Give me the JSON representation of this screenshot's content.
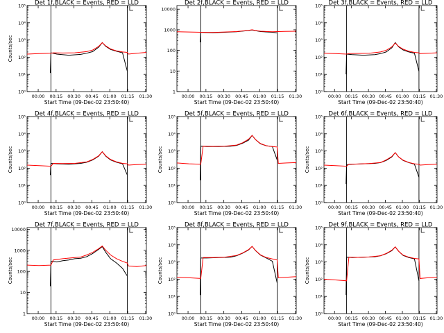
{
  "chart_data": [
    {
      "type": "line",
      "title": "Det 1f,BLACK = Events, RED = LLD",
      "ylabel": "Counts/sec",
      "xlabel": "Start Time (09-Dec-02 23:50:40)",
      "xticks": [
        "00:00",
        "00:15",
        "00:30",
        "00:45",
        "01:00",
        "01:15",
        "01:30"
      ],
      "yticks": [
        "10⁰",
        "10¹",
        "10²",
        "10³",
        "10⁴",
        "10⁵"
      ],
      "ylog": true,
      "ylim": [
        1,
        100000
      ],
      "xlim_min": [
        0,
        100
      ],
      "gap_start_min": 20,
      "gap_end_min": 84,
      "legend_box": true,
      "series": [
        {
          "color": "#000000",
          "x": [
            19.5,
            20,
            25,
            35,
            45,
            50,
            55,
            60,
            63,
            66,
            70,
            75,
            80,
            84
          ],
          "y": [
            12,
            180,
            150,
            130,
            145,
            170,
            210,
            380,
            700,
            420,
            280,
            220,
            180,
            15
          ]
        },
        {
          "color": "#ff0000",
          "x": [
            0,
            10,
            20,
            22,
            30,
            40,
            50,
            55,
            60,
            63,
            66,
            70,
            75,
            80,
            84,
            85,
            92,
            100
          ],
          "y": [
            150,
            160,
            170,
            180,
            175,
            180,
            210,
            260,
            420,
            700,
            450,
            300,
            230,
            200,
            190,
            150,
            170,
            190
          ]
        }
      ]
    },
    {
      "type": "line",
      "title": "Det 2f,BLACK = Events, RED = LLD",
      "ylabel": "",
      "xlabel": "Start Time (09-Dec-02 23:50:40)",
      "xticks": [
        "00:00",
        "00:15",
        "00:30",
        "00:45",
        "01:00",
        "01:15",
        "01:30"
      ],
      "yticks": [
        "1",
        "10",
        "100",
        "1000",
        "10000"
      ],
      "ylog": true,
      "ylim": [
        1,
        15000
      ],
      "xlim_min": [
        0,
        100
      ],
      "gap_start_min": 20,
      "gap_end_min": 84,
      "legend_box": true,
      "series": [
        {
          "color": "#000000",
          "x": [
            19.5,
            20,
            30,
            40,
            50,
            55,
            60,
            63,
            66,
            70,
            80,
            84
          ],
          "y": [
            250,
            750,
            720,
            760,
            800,
            860,
            920,
            980,
            900,
            820,
            760,
            700
          ]
        },
        {
          "color": "#ff0000",
          "x": [
            0,
            10,
            20,
            30,
            40,
            50,
            55,
            60,
            63,
            66,
            70,
            80,
            90,
            100
          ],
          "y": [
            800,
            780,
            760,
            740,
            780,
            820,
            880,
            940,
            1000,
            920,
            850,
            800,
            830,
            850
          ]
        }
      ]
    },
    {
      "type": "line",
      "title": "Det 3f,BLACK = Events, RED = LLD",
      "ylabel": "",
      "xlabel": "Start Time (09-Dec-02 23:50:40)",
      "xticks": [
        "00:00",
        "00:15",
        "00:30",
        "00:45",
        "01:00",
        "01:15",
        "01:30"
      ],
      "yticks": [
        "10⁰",
        "10¹",
        "10²",
        "10³",
        "10⁴",
        "10⁵"
      ],
      "ylog": true,
      "ylim": [
        1,
        100000
      ],
      "xlim_min": [
        0,
        100
      ],
      "gap_start_min": 20,
      "gap_end_min": 84,
      "legend_box": true,
      "series": [
        {
          "color": "#000000",
          "x": [
            19.5,
            20,
            25,
            35,
            45,
            50,
            55,
            60,
            63,
            66,
            70,
            75,
            80,
            84
          ],
          "y": [
            10,
            150,
            140,
            130,
            140,
            160,
            200,
            350,
            700,
            400,
            260,
            200,
            170,
            15
          ]
        },
        {
          "color": "#ff0000",
          "x": [
            0,
            10,
            20,
            22,
            30,
            40,
            50,
            55,
            60,
            63,
            66,
            70,
            75,
            80,
            84,
            85,
            92,
            100
          ],
          "y": [
            170,
            160,
            150,
            160,
            165,
            170,
            200,
            250,
            400,
            650,
            420,
            290,
            220,
            190,
            180,
            160,
            170,
            180
          ]
        }
      ]
    },
    {
      "type": "line",
      "title": "Det 4f,BLACK = Events, RED = LLD",
      "ylabel": "Counts/sec",
      "xlabel": "Start Time (09-Dec-02 23:50:40)",
      "xticks": [
        "00:00",
        "00:15",
        "00:30",
        "00:45",
        "01:00",
        "01:15",
        "01:30"
      ],
      "yticks": [
        "10⁰",
        "10¹",
        "10²",
        "10³",
        "10⁴",
        "10⁵"
      ],
      "ylog": true,
      "ylim": [
        1,
        100000
      ],
      "xlim_min": [
        0,
        100
      ],
      "gap_start_min": 20,
      "gap_end_min": 84,
      "legend_box": true,
      "series": [
        {
          "color": "#000000",
          "x": [
            19.5,
            20,
            25,
            35,
            45,
            50,
            55,
            60,
            63,
            66,
            70,
            75,
            80,
            84
          ],
          "y": [
            40,
            190,
            180,
            170,
            190,
            220,
            300,
            500,
            900,
            500,
            300,
            220,
            180,
            40
          ]
        },
        {
          "color": "#ff0000",
          "x": [
            0,
            10,
            20,
            22,
            30,
            40,
            50,
            55,
            60,
            63,
            66,
            70,
            75,
            80,
            84,
            85,
            92,
            100
          ],
          "y": [
            150,
            140,
            130,
            190,
            185,
            190,
            230,
            320,
            520,
            900,
            520,
            320,
            230,
            190,
            180,
            150,
            160,
            170
          ]
        }
      ]
    },
    {
      "type": "line",
      "title": "Det 5f,BLACK = Events, RED = LLD",
      "ylabel": "Counts/sec",
      "xlabel": "Start Time (09-Dec-02 23:50:40)",
      "xticks": [
        "00:00",
        "00:15",
        "00:30",
        "00:45",
        "01:00",
        "01:15",
        "01:30"
      ],
      "yticks": [
        "10⁰",
        "10¹",
        "10²",
        "10³",
        "10⁴",
        "10⁵"
      ],
      "ylog": true,
      "ylim": [
        1,
        100000
      ],
      "xlim_min": [
        0,
        100
      ],
      "gap_start_min": 20,
      "gap_end_min": 84,
      "legend_box": true,
      "series": [
        {
          "color": "#000000",
          "x": [
            19.5,
            20,
            25,
            35,
            45,
            50,
            55,
            60,
            63,
            66,
            70,
            75,
            80,
            84
          ],
          "y": [
            20,
            1900,
            1800,
            1800,
            1900,
            2100,
            2800,
            4200,
            8000,
            4500,
            2600,
            2000,
            1800,
            300
          ]
        },
        {
          "color": "#ff0000",
          "x": [
            0,
            10,
            20,
            22,
            30,
            40,
            50,
            55,
            60,
            63,
            66,
            70,
            75,
            80,
            84,
            85,
            92,
            100
          ],
          "y": [
            200,
            180,
            170,
            1900,
            1850,
            1900,
            2200,
            3000,
            4800,
            8000,
            4500,
            2700,
            2000,
            1800,
            1700,
            190,
            200,
            210
          ]
        }
      ]
    },
    {
      "type": "line",
      "title": "Det 6f,BLACK = Events, RED = LLD",
      "ylabel": "Counts/sec",
      "xlabel": "Start Time (09-Dec-02 23:50:40)",
      "xticks": [
        "00:00",
        "00:15",
        "00:30",
        "00:45",
        "01:00",
        "01:15",
        "01:30"
      ],
      "yticks": [
        "10⁰",
        "10¹",
        "10²",
        "10³",
        "10⁴",
        "10⁵"
      ],
      "ylog": true,
      "ylim": [
        1,
        100000
      ],
      "xlim_min": [
        0,
        100
      ],
      "gap_start_min": 20,
      "gap_end_min": 84,
      "legend_box": true,
      "series": [
        {
          "color": "#000000",
          "x": [
            19.5,
            20,
            25,
            35,
            45,
            50,
            55,
            60,
            63,
            66,
            70,
            75,
            80,
            84
          ],
          "y": [
            12,
            160,
            170,
            180,
            190,
            210,
            280,
            450,
            800,
            450,
            280,
            210,
            170,
            30
          ]
        },
        {
          "color": "#ff0000",
          "x": [
            0,
            10,
            20,
            22,
            30,
            40,
            50,
            55,
            60,
            63,
            66,
            70,
            75,
            80,
            84,
            85,
            92,
            100
          ],
          "y": [
            150,
            140,
            130,
            170,
            175,
            185,
            215,
            300,
            480,
            800,
            450,
            290,
            215,
            180,
            170,
            150,
            160,
            170
          ]
        }
      ]
    },
    {
      "type": "line",
      "title": "Det 7f,BLACK = Events, RED = LLD",
      "ylabel": "Counts/sec",
      "xlabel": "Start Time (09-Dec-02 23:50:40)",
      "xticks": [
        "00:00",
        "00:15",
        "00:30",
        "00:45",
        "01:00",
        "01:15",
        "01:30"
      ],
      "yticks": [
        "1",
        "10",
        "100",
        "1000",
        "10000"
      ],
      "ylog": true,
      "ylim": [
        1,
        12000
      ],
      "xlim_min": [
        0,
        100
      ],
      "gap_start_min": 20,
      "gap_end_min": 84,
      "legend_box": true,
      "series": [
        {
          "color": "#000000",
          "x": [
            19.5,
            20,
            25,
            30,
            35,
            40,
            45,
            50,
            55,
            60,
            63,
            66,
            70,
            75,
            80,
            84
          ],
          "y": [
            20,
            300,
            280,
            320,
            350,
            400,
            420,
            500,
            700,
            1100,
            1500,
            800,
            400,
            250,
            140,
            60
          ]
        },
        {
          "color": "#ff0000",
          "x": [
            0,
            10,
            20,
            22,
            30,
            40,
            45,
            50,
            55,
            60,
            63,
            66,
            70,
            75,
            80,
            84,
            85,
            92,
            100
          ],
          "y": [
            200,
            190,
            200,
            350,
            400,
            450,
            480,
            600,
            800,
            1200,
            1600,
            1000,
            600,
            400,
            300,
            250,
            180,
            170,
            190
          ]
        }
      ]
    },
    {
      "type": "line",
      "title": "Det 8f,BLACK = Events, RED = LLD",
      "ylabel": "Counts/sec",
      "xlabel": "Start Time (09-Dec-02 23:50:40)",
      "xticks": [
        "00:00",
        "00:15",
        "00:30",
        "00:45",
        "01:00",
        "01:15",
        "01:30"
      ],
      "yticks": [
        "10⁰",
        "10¹",
        "10²",
        "10³",
        "10⁴",
        "10⁵"
      ],
      "ylog": true,
      "ylim": [
        1,
        100000
      ],
      "xlim_min": [
        0,
        100
      ],
      "gap_start_min": 20,
      "gap_end_min": 84,
      "legend_box": true,
      "series": [
        {
          "color": "#000000",
          "x": [
            19.5,
            20,
            25,
            35,
            45,
            50,
            55,
            60,
            63,
            66,
            70,
            75,
            80,
            84
          ],
          "y": [
            12,
            1700,
            1700,
            1800,
            1900,
            2300,
            3200,
            5000,
            8000,
            4500,
            2500,
            1700,
            1100,
            60
          ]
        },
        {
          "color": "#ff0000",
          "x": [
            0,
            10,
            20,
            22,
            30,
            40,
            50,
            55,
            60,
            63,
            66,
            70,
            75,
            80,
            84,
            85,
            92,
            100
          ],
          "y": [
            130,
            120,
            110,
            1800,
            1800,
            1900,
            2400,
            3300,
            5200,
            8000,
            4600,
            2600,
            1800,
            1500,
            1300,
            120,
            130,
            140
          ]
        }
      ]
    },
    {
      "type": "line",
      "title": "Det 9f,BLACK = Events, RED = LLD",
      "ylabel": "Counts/sec",
      "xlabel": "Start Time (09-Dec-02 23:50:40)",
      "xticks": [
        "00:00",
        "00:15",
        "00:30",
        "00:45",
        "01:00",
        "01:15",
        "01:30"
      ],
      "yticks": [
        "10⁰",
        "10¹",
        "10²",
        "10³",
        "10⁴",
        "10⁵"
      ],
      "ylog": true,
      "ylim": [
        1,
        100000
      ],
      "xlim_min": [
        0,
        100
      ],
      "gap_start_min": 20,
      "gap_end_min": 84,
      "legend_box": true,
      "series": [
        {
          "color": "#000000",
          "x": [
            19.5,
            20,
            25,
            35,
            45,
            50,
            55,
            60,
            63,
            66,
            70,
            75,
            80,
            84
          ],
          "y": [
            12,
            1900,
            1800,
            1900,
            2000,
            2300,
            3000,
            4500,
            7500,
            4200,
            2400,
            1800,
            1500,
            80
          ]
        },
        {
          "color": "#ff0000",
          "x": [
            0,
            10,
            20,
            22,
            30,
            40,
            50,
            55,
            60,
            63,
            66,
            70,
            75,
            80,
            84,
            85,
            92,
            100
          ],
          "y": [
            100,
            90,
            80,
            1900,
            1850,
            1950,
            2300,
            3100,
            4800,
            7500,
            4200,
            2500,
            1900,
            1600,
            1500,
            110,
            120,
            130
          ]
        }
      ]
    }
  ]
}
